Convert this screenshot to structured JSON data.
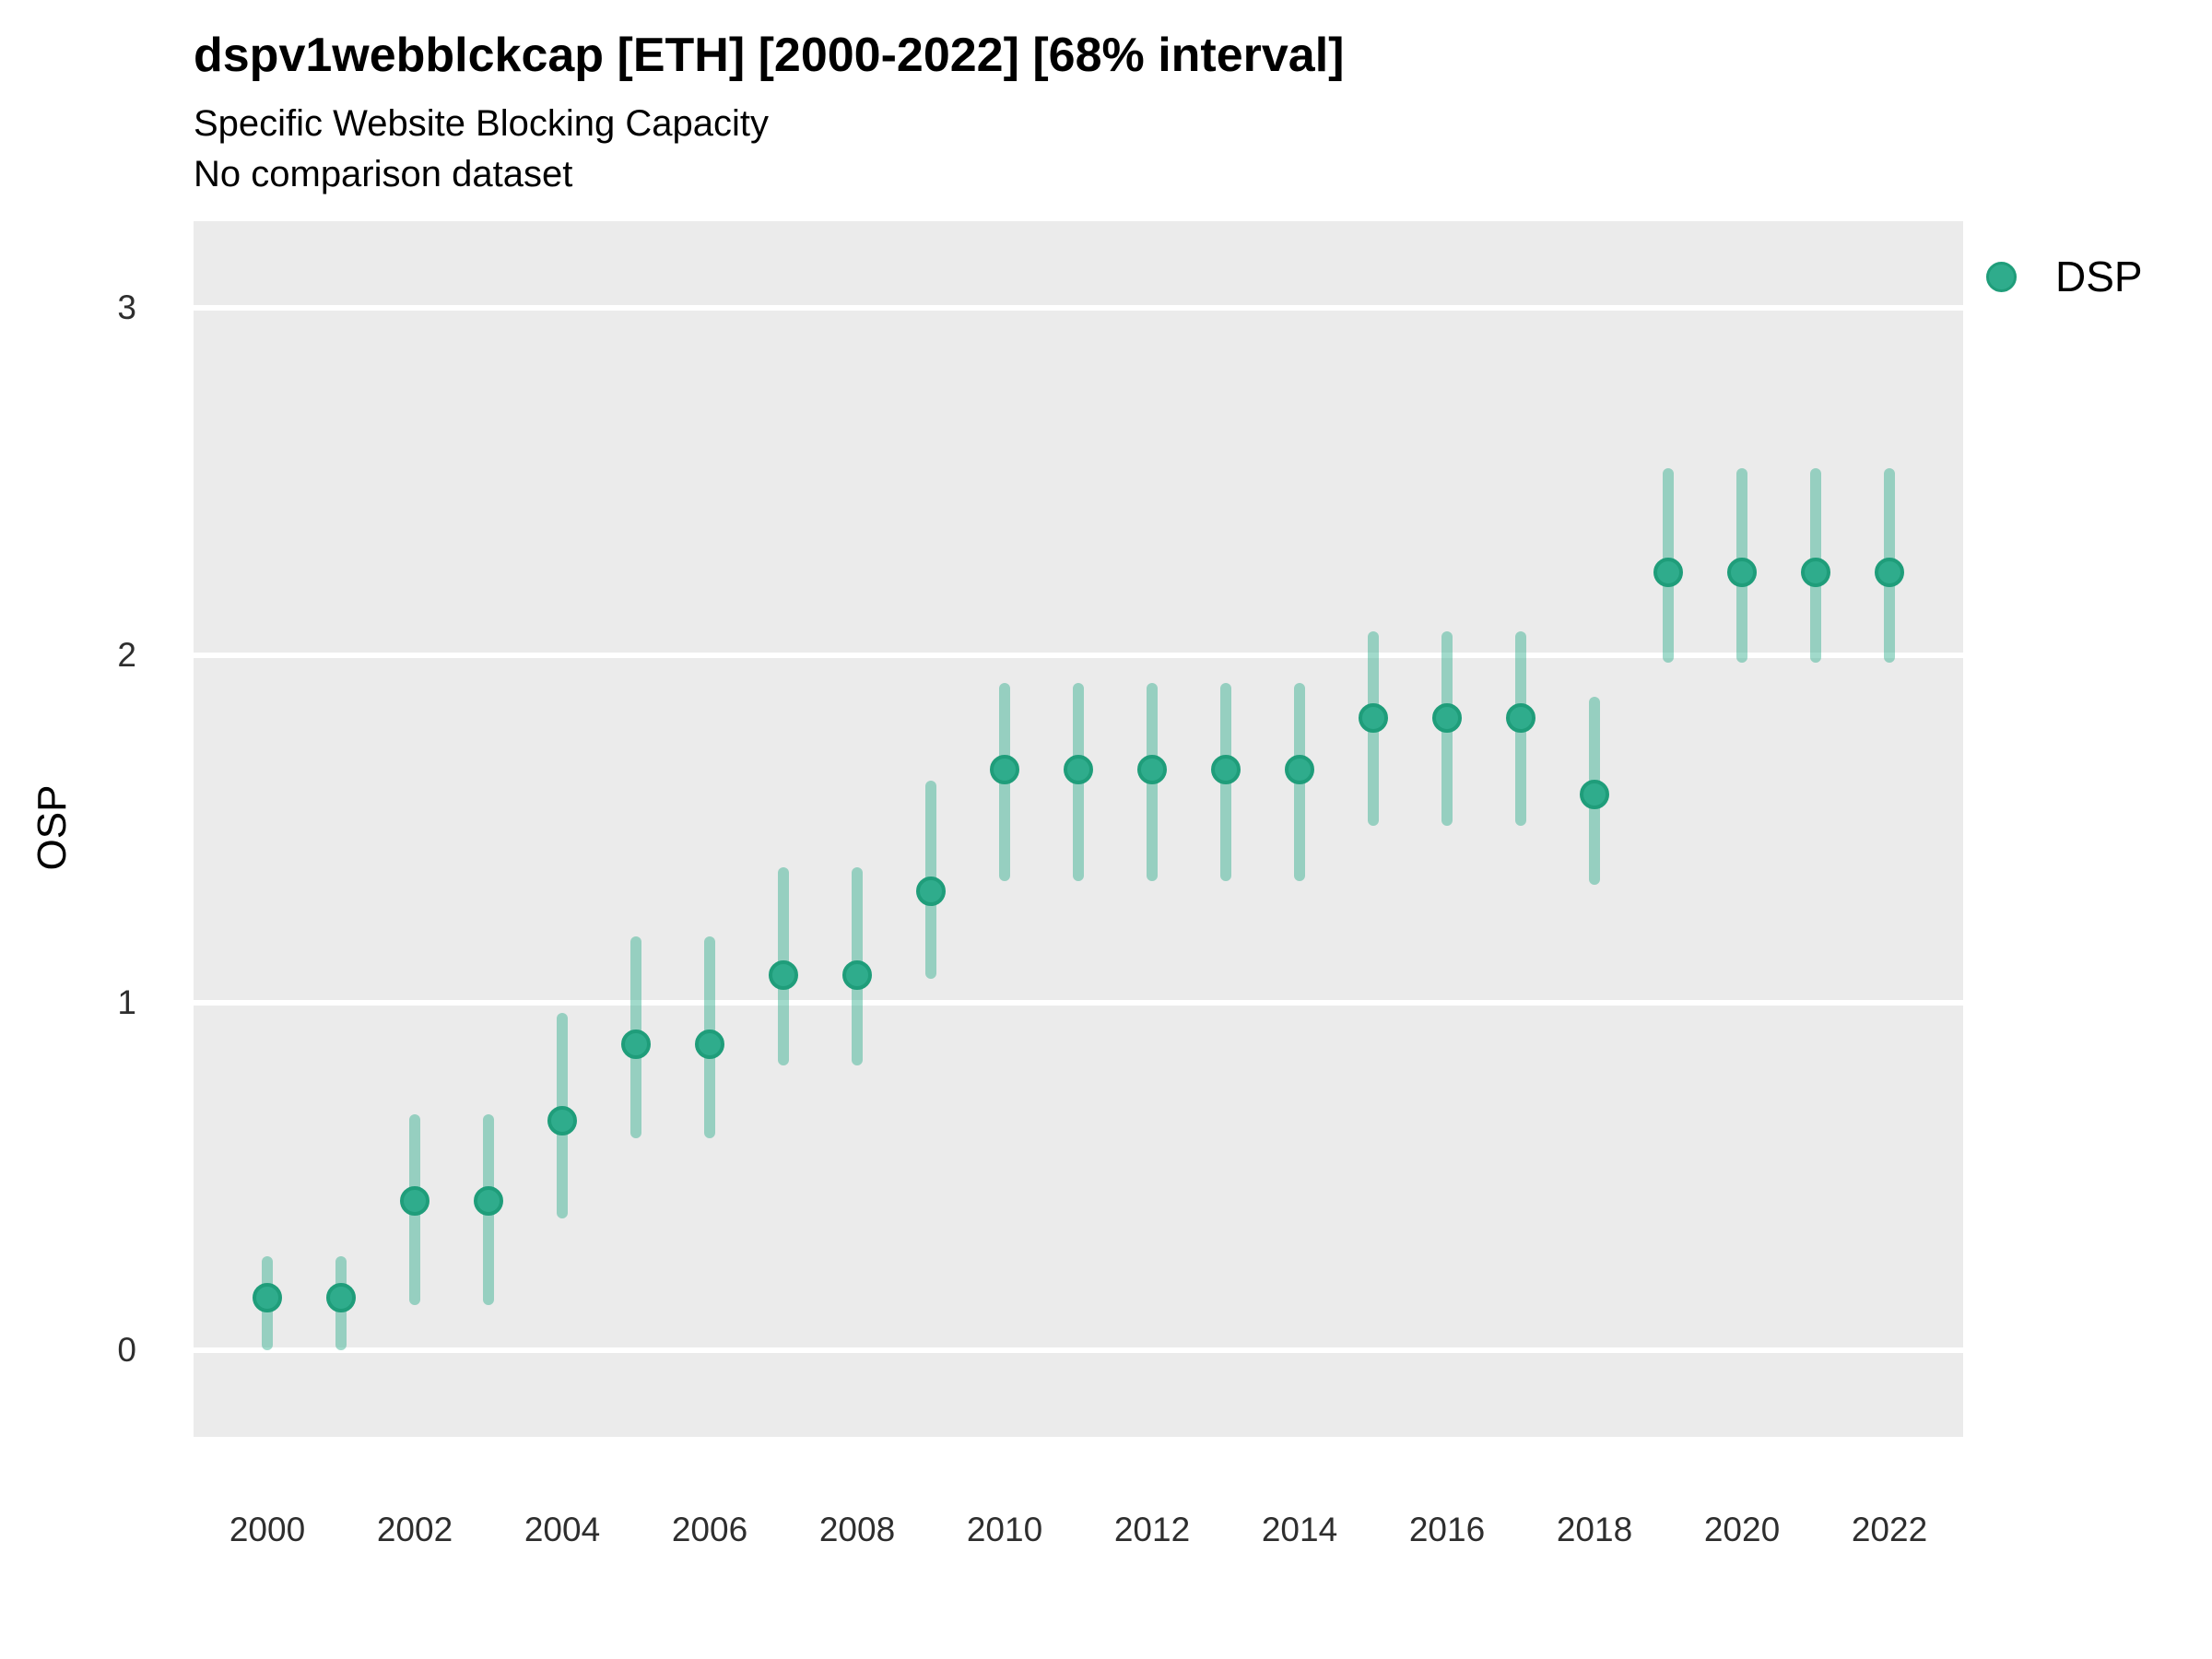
{
  "header": {
    "title": "dspv1webblckcap [ETH] [2000-2022] [68% interval]",
    "subtitle": "Specific Website Blocking Capacity",
    "subtitle2": "No comparison dataset"
  },
  "colors": {
    "point_fill": "#2FAC8C",
    "point_stroke": "#1F9D7A",
    "interval_base": "#2FAC8C",
    "interval_rgba": "rgba(47,172,140,0.45)",
    "panel_bg": "#EBEBEB",
    "gridline": "#FFFFFF",
    "tick_text": "#2e2e2e"
  },
  "chart_data": {
    "type": "pointrange",
    "title": "dspv1webblckcap [ETH] [2000-2022] [68% interval]",
    "subtitle": "Specific Website Blocking Capacity",
    "note": "No comparison dataset",
    "xlabel": "",
    "ylabel": "OSP",
    "interval_level": "68%",
    "grid": "horizontal-major-only",
    "legend_position": "right-top",
    "xlim": [
      1999,
      2023
    ],
    "ylim": [
      -0.25,
      3.25
    ],
    "y_ticks": [
      0,
      1,
      2,
      3
    ],
    "x_ticks": [
      2000,
      2002,
      2004,
      2006,
      2008,
      2010,
      2012,
      2014,
      2016,
      2018,
      2020,
      2022
    ],
    "series": [
      {
        "name": "DSP",
        "points": [
          {
            "year": 2000,
            "est": 0.15,
            "lo": 0.0,
            "hi": 0.27
          },
          {
            "year": 2001,
            "est": 0.15,
            "lo": 0.0,
            "hi": 0.27
          },
          {
            "year": 2002,
            "est": 0.43,
            "lo": 0.13,
            "hi": 0.68
          },
          {
            "year": 2003,
            "est": 0.43,
            "lo": 0.13,
            "hi": 0.68
          },
          {
            "year": 2004,
            "est": 0.66,
            "lo": 0.38,
            "hi": 0.97
          },
          {
            "year": 2005,
            "est": 0.88,
            "lo": 0.61,
            "hi": 1.19
          },
          {
            "year": 2006,
            "est": 0.88,
            "lo": 0.61,
            "hi": 1.19
          },
          {
            "year": 2007,
            "est": 1.08,
            "lo": 0.82,
            "hi": 1.39
          },
          {
            "year": 2008,
            "est": 1.08,
            "lo": 0.82,
            "hi": 1.39
          },
          {
            "year": 2009,
            "est": 1.32,
            "lo": 1.07,
            "hi": 1.64
          },
          {
            "year": 2010,
            "est": 1.67,
            "lo": 1.35,
            "hi": 1.92
          },
          {
            "year": 2011,
            "est": 1.67,
            "lo": 1.35,
            "hi": 1.92
          },
          {
            "year": 2012,
            "est": 1.67,
            "lo": 1.35,
            "hi": 1.92
          },
          {
            "year": 2013,
            "est": 1.67,
            "lo": 1.35,
            "hi": 1.92
          },
          {
            "year": 2014,
            "est": 1.67,
            "lo": 1.35,
            "hi": 1.92
          },
          {
            "year": 2015,
            "est": 1.82,
            "lo": 1.51,
            "hi": 2.07
          },
          {
            "year": 2016,
            "est": 1.82,
            "lo": 1.51,
            "hi": 2.07
          },
          {
            "year": 2017,
            "est": 1.82,
            "lo": 1.51,
            "hi": 2.07
          },
          {
            "year": 2018,
            "est": 1.6,
            "lo": 1.34,
            "hi": 1.88
          },
          {
            "year": 2019,
            "est": 2.24,
            "lo": 1.98,
            "hi": 2.54
          },
          {
            "year": 2020,
            "est": 2.24,
            "lo": 1.98,
            "hi": 2.54
          },
          {
            "year": 2021,
            "est": 2.24,
            "lo": 1.98,
            "hi": 2.54
          },
          {
            "year": 2022,
            "est": 2.24,
            "lo": 1.98,
            "hi": 2.54
          }
        ]
      }
    ]
  }
}
